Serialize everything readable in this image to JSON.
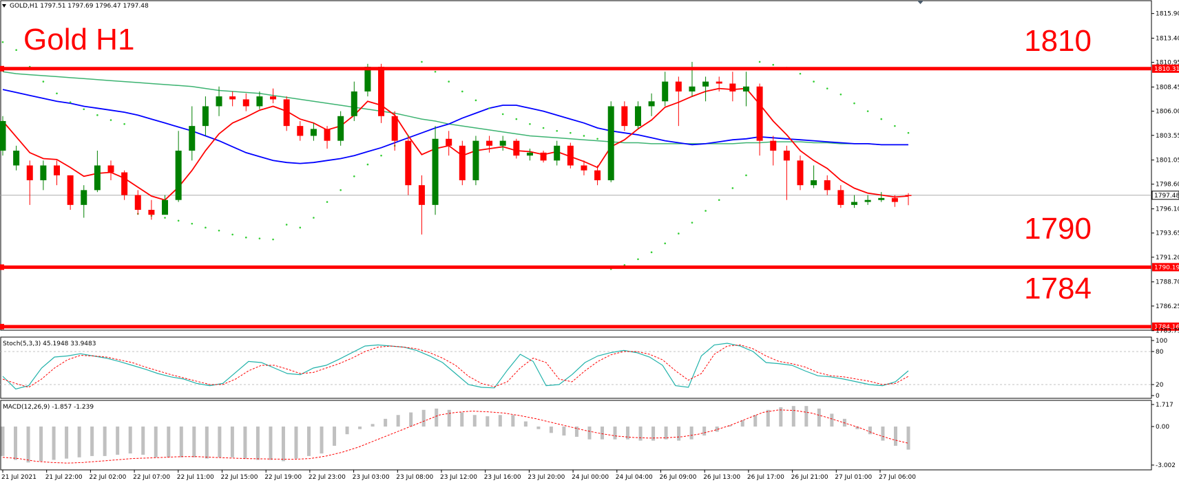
{
  "header": {
    "symbol_info": "GOLD,H1  1797.51 1797.69 1796.47 1797.48"
  },
  "colors": {
    "bull": "#008000",
    "bear": "#ff0000",
    "ma_fast": "#ff0000",
    "ma_mid": "#0000ff",
    "ma_slow": "#3cb371",
    "sar": "#32cd32",
    "level_line": "#ff0000",
    "stoch_main": "#20b2aa",
    "stoch_signal": "#ff0000",
    "macd_hist": "#c0c0c0",
    "macd_signal": "#ff0000"
  },
  "chart_data": {
    "type": "candlestick",
    "title": "Gold H1",
    "price_axis": {
      "ylim": [
        1783.8,
        1817.2
      ],
      "ticks": [
        "1815.90",
        "1813.40",
        "1810.95",
        "1808.45",
        "1806.00",
        "1803.55",
        "1801.05",
        "1798.60",
        "1796.10",
        "1793.65",
        "1791.20",
        "1788.70",
        "1786.25",
        "1783.75"
      ],
      "current_price": "1797.48",
      "level_tags": [
        "1810.31",
        "1790.19",
        "1784.16"
      ]
    },
    "levels": [
      {
        "label": "1810",
        "price": 1810.31
      },
      {
        "label": "1790",
        "price": 1790.19
      },
      {
        "label": "1784",
        "price": 1784.16
      }
    ],
    "time_labels": [
      "21 Jul 2021",
      "21 Jul 22:00",
      "22 Jul 02:00",
      "22 Jul 07:00",
      "22 Jul 11:00",
      "22 Jul 15:00",
      "22 Jul 19:00",
      "22 Jul 23:00",
      "23 Jul 03:00",
      "23 Jul 08:00",
      "23 Jul 12:00",
      "23 Jul 16:00",
      "23 Jul 20:00",
      "24 Jul 00:00",
      "24 Jul 04:00",
      "26 Jul 09:00",
      "26 Jul 13:00",
      "26 Jul 17:00",
      "26 Jul 21:00",
      "27 Jul 01:00",
      "27 Jul 06:00"
    ],
    "candles": [
      [
        1802,
        1805,
        1805.5,
        1801.5
      ],
      [
        1800.5,
        1802,
        1802.5,
        1800
      ],
      [
        1800.5,
        1799,
        1801,
        1796.5
      ],
      [
        1799,
        1800.5,
        1801,
        1798
      ],
      [
        1800.5,
        1799.5,
        1801,
        1798.5
      ],
      [
        1799.5,
        1796.5,
        1799.5,
        1796
      ],
      [
        1796.5,
        1798,
        1798.5,
        1795.2
      ],
      [
        1798,
        1800.5,
        1802,
        1797.8
      ],
      [
        1800.5,
        1799.8,
        1801,
        1799
      ],
      [
        1799.8,
        1797.5,
        1800,
        1797
      ],
      [
        1797.5,
        1796,
        1798,
        1795.5
      ],
      [
        1796,
        1795.5,
        1797,
        1795
      ],
      [
        1795.5,
        1797,
        1797.5,
        1795.8
      ],
      [
        1797,
        1802,
        1804,
        1796.8
      ],
      [
        1802,
        1804.5,
        1806.5,
        1801
      ],
      [
        1804.5,
        1806.5,
        1807.5,
        1803.5
      ],
      [
        1806.5,
        1807.5,
        1808.5,
        1805.5
      ],
      [
        1807.5,
        1807.2,
        1808,
        1806.5
      ],
      [
        1807.2,
        1806.5,
        1807.8,
        1806
      ],
      [
        1806.5,
        1807.5,
        1808,
        1806.2
      ],
      [
        1807.5,
        1807.2,
        1808.3,
        1806.8
      ],
      [
        1807.2,
        1804.5,
        1807.5,
        1804
      ],
      [
        1804.5,
        1803.5,
        1805,
        1803
      ],
      [
        1803.5,
        1804.2,
        1804.8,
        1803
      ],
      [
        1804.2,
        1803,
        1804.5,
        1802.2
      ],
      [
        1803,
        1805.5,
        1806,
        1802.5
      ],
      [
        1805.5,
        1808,
        1809,
        1805
      ],
      [
        1808,
        1810.5,
        1810.8,
        1807.5
      ],
      [
        1810.5,
        1805.5,
        1810.8,
        1804.8
      ],
      [
        1805.5,
        1803,
        1806,
        1802
      ],
      [
        1803,
        1798.5,
        1803.5,
        1797.5
      ],
      [
        1798.5,
        1796.5,
        1799.5,
        1793.5
      ],
      [
        1796.5,
        1803.2,
        1804.5,
        1795.5
      ],
      [
        1803.2,
        1802.5,
        1804,
        1801.5
      ],
      [
        1802.5,
        1799,
        1803,
        1798.5
      ],
      [
        1799,
        1803,
        1803.5,
        1798.5
      ],
      [
        1803,
        1802.5,
        1803.5,
        1801.8
      ],
      [
        1802.5,
        1803,
        1803.5,
        1802
      ],
      [
        1803,
        1801.5,
        1803.2,
        1801.2
      ],
      [
        1801.5,
        1801.8,
        1802.2,
        1801
      ],
      [
        1801.8,
        1801,
        1802,
        1800.8
      ],
      [
        1801,
        1802.5,
        1803,
        1800.5
      ],
      [
        1802.5,
        1800.5,
        1802.8,
        1800.2
      ],
      [
        1800.5,
        1800,
        1801,
        1799.5
      ],
      [
        1800,
        1799,
        1800.5,
        1798.5
      ],
      [
        1799,
        1806.5,
        1807,
        1798.8
      ],
      [
        1806.5,
        1804.5,
        1807,
        1804
      ],
      [
        1804.5,
        1806.5,
        1807,
        1804.2
      ],
      [
        1806.5,
        1807,
        1807.8,
        1805.5
      ],
      [
        1807,
        1809,
        1810,
        1806.5
      ],
      [
        1809,
        1808,
        1809.5,
        1804.5
      ],
      [
        1808,
        1808.5,
        1811,
        1807.5
      ],
      [
        1808.5,
        1809,
        1809.5,
        1807
      ],
      [
        1809,
        1808.8,
        1809.5,
        1808
      ],
      [
        1808.8,
        1808,
        1810,
        1807
      ],
      [
        1808,
        1808.5,
        1810,
        1806.5
      ],
      [
        1808.5,
        1803,
        1808.8,
        1801.5
      ],
      [
        1803,
        1802,
        1803.5,
        1800.5
      ],
      [
        1802,
        1801,
        1802.5,
        1797
      ],
      [
        1801,
        1798.5,
        1801.5,
        1798
      ],
      [
        1798.5,
        1799,
        1800.5,
        1798.2
      ],
      [
        1799,
        1798,
        1799.5,
        1797.5
      ],
      [
        1798,
        1796.5,
        1798.5,
        1796.2
      ],
      [
        1796.5,
        1796.8,
        1797.5,
        1796.2
      ],
      [
        1796.8,
        1797,
        1797.5,
        1796.5
      ],
      [
        1797,
        1797.2,
        1797.8,
        1796.8
      ],
      [
        1797.2,
        1796.8,
        1797.5,
        1796.3
      ],
      [
        1797.51,
        1797.48,
        1797.69,
        1796.47
      ]
    ],
    "ma_fast": [
      1805,
      1803.4,
      1801.8,
      1801.2,
      1801.1,
      1800.3,
      1799.4,
      1799.7,
      1799.8,
      1799.2,
      1798.3,
      1797.4,
      1797,
      1798.3,
      1800,
      1802,
      1803.7,
      1804.8,
      1805.4,
      1806.1,
      1806.5,
      1806,
      1805.2,
      1804.8,
      1804.1,
      1804.5,
      1805.6,
      1807,
      1806.6,
      1805.6,
      1803.5,
      1801.6,
      1802.2,
      1802.5,
      1801.5,
      1802,
      1802.2,
      1802.4,
      1802,
      1801.9,
      1801.6,
      1801.9,
      1801.4,
      1800.9,
      1800.3,
      1802.4,
      1803.1,
      1804.2,
      1805.1,
      1806.4,
      1806.9,
      1807.5,
      1808,
      1808.3,
      1808.2,
      1808.3,
      1806.7,
      1805,
      1803.6,
      1802,
      1801,
      1800.2,
      1799,
      1798.2,
      1797.7,
      1797.5,
      1797.3,
      1797.4
    ],
    "ma_mid": [
      1808.2,
      1807.9,
      1807.6,
      1807.3,
      1807,
      1806.8,
      1806.5,
      1806.3,
      1806.1,
      1805.9,
      1805.6,
      1805.2,
      1804.8,
      1804.4,
      1804,
      1803.5,
      1803,
      1802.4,
      1801.8,
      1801.4,
      1801,
      1800.8,
      1800.7,
      1800.8,
      1801,
      1801.2,
      1801.5,
      1801.9,
      1802.3,
      1802.8,
      1803.3,
      1803.8,
      1804.3,
      1804.7,
      1805.3,
      1805.8,
      1806.3,
      1806.6,
      1806.6,
      1806.3,
      1806,
      1805.6,
      1805.2,
      1804.8,
      1804.3,
      1804.0,
      1803.8,
      1803.6,
      1803.3,
      1803,
      1802.8,
      1802.6,
      1802.7,
      1802.9,
      1803.1,
      1803.2,
      1803.4,
      1803.3,
      1803.2,
      1803.1,
      1803.0,
      1802.9,
      1802.8,
      1802.7,
      1802.7,
      1802.6,
      1802.6,
      1802.6
    ],
    "ma_slow": [
      1810,
      1809.8,
      1809.7,
      1809.6,
      1809.5,
      1809.4,
      1809.3,
      1809.2,
      1809.1,
      1809,
      1808.9,
      1808.8,
      1808.7,
      1808.6,
      1808.5,
      1808.3,
      1808.1,
      1808,
      1807.9,
      1807.8,
      1807.6,
      1807.4,
      1807.2,
      1807,
      1806.8,
      1806.6,
      1806.4,
      1806.2,
      1806,
      1805.8,
      1805.5,
      1805.2,
      1805,
      1804.7,
      1804.5,
      1804.3,
      1804.1,
      1803.9,
      1803.7,
      1803.5,
      1803.4,
      1803.3,
      1803.2,
      1803.1,
      1803,
      1802.9,
      1802.8,
      1802.8,
      1802.7,
      1802.7,
      1802.7,
      1802.7,
      1802.7,
      1802.7,
      1802.7,
      1802.8,
      1802.8,
      1802.9,
      1802.9,
      1802.9,
      1802.8,
      1802.8,
      1802.7,
      1802.7,
      1802.7,
      1802.6,
      1802.6,
      1802.6
    ],
    "sar": [
      1813,
      1812.2,
      1810.5,
      1809,
      1807.8,
      1806.9,
      1806.2,
      1805.6,
      1805.1,
      1804.7,
      1795.6,
      1795.4,
      1795.2,
      1794.9,
      1794.6,
      1794.2,
      1793.9,
      1793.5,
      1793.2,
      1793.1,
      1793,
      1794.5,
      1794.2,
      1795.2,
      1796.8,
      1798,
      1799.4,
      1800.6,
      1801.5,
      1802.5,
      1803.5,
      1811,
      1810,
      1809,
      1808,
      1807.1,
      1806.3,
      1805.7,
      1805.2,
      1804.7,
      1804.3,
      1804,
      1803.8,
      1803.5,
      1803.2,
      1790,
      1790.4,
      1791,
      1791.7,
      1792.6,
      1793.6,
      1794.7,
      1795.9,
      1797,
      1798.2,
      1799.5,
      1811,
      1810.7,
      1810.4,
      1809.8,
      1809,
      1808.3,
      1807.7,
      1806.8,
      1806,
      1805.2,
      1804.5,
      1803.8
    ],
    "stoch": {
      "label": "Stoch(5,3,3) 45.1948 33.9483",
      "ylim": [
        0,
        100
      ],
      "ticks": [
        "100",
        "80",
        "20",
        "0"
      ],
      "main": [
        35,
        12,
        18,
        50,
        70,
        72,
        76,
        72,
        68,
        62,
        55,
        48,
        40,
        34,
        30,
        22,
        18,
        22,
        42,
        62,
        60,
        50,
        40,
        38,
        50,
        55,
        66,
        78,
        90,
        92,
        90,
        88,
        82,
        72,
        60,
        40,
        20,
        15,
        14,
        46,
        75,
        62,
        18,
        20,
        38,
        60,
        72,
        78,
        82,
        78,
        70,
        55,
        18,
        15,
        72,
        92,
        95,
        90,
        80,
        60,
        58,
        55,
        45,
        36,
        34,
        30,
        25,
        20,
        18,
        25,
        45
      ],
      "signal": [
        30,
        22,
        15,
        30,
        50,
        65,
        73,
        72,
        70,
        65,
        60,
        52,
        45,
        38,
        32,
        26,
        20,
        20,
        30,
        45,
        55,
        55,
        48,
        40,
        42,
        50,
        58,
        68,
        80,
        88,
        90,
        88,
        85,
        78,
        68,
        55,
        35,
        22,
        16,
        25,
        50,
        68,
        60,
        30,
        25,
        45,
        62,
        74,
        80,
        80,
        75,
        65,
        45,
        28,
        40,
        75,
        90,
        92,
        85,
        72,
        62,
        58,
        52,
        42,
        36,
        34,
        30,
        26,
        20,
        22,
        35
      ]
    },
    "macd": {
      "label": "MACD(12,26,9) -1.857 -1.239",
      "ylim": [
        -3.002,
        1.717
      ],
      "ticks": [
        "1.717",
        "0.00",
        "-3.002"
      ],
      "hist": [
        -2.3,
        -2.6,
        -2.8,
        -2.7,
        -2.6,
        -2.5,
        -2.4,
        -2.3,
        -2.3,
        -2.2,
        -2.1,
        -2.2,
        -2.4,
        -2.4,
        -2.4,
        -2.4,
        -2.5,
        -2.4,
        -2.4,
        -2.5,
        -2.6,
        -2.6,
        -2.7,
        -2.5,
        -2.3,
        -2.1,
        -1.5,
        -0.6,
        -0.2,
        0.2,
        0.6,
        0.9,
        1.1,
        1.3,
        1.4,
        1.3,
        1.1,
        0.9,
        0.8,
        0.9,
        0.9,
        0.4,
        -0.2,
        -0.5,
        -0.7,
        -0.8,
        -1.0,
        -1.0,
        -1.0,
        -1.0,
        -1.1,
        -1.1,
        -1.0,
        -1.1,
        -1.0,
        -0.7,
        -0.4,
        0.1,
        0.5,
        0.9,
        1.3,
        1.5,
        1.6,
        1.6,
        1.4,
        1.0,
        0.6,
        -0.2,
        -0.6,
        -1.1,
        -1.5,
        -1.8
      ],
      "signal": [
        -2.4,
        -2.5,
        -2.7,
        -2.8,
        -2.85,
        -2.8,
        -2.7,
        -2.6,
        -2.5,
        -2.45,
        -2.4,
        -2.35,
        -2.35,
        -2.4,
        -2.45,
        -2.5,
        -2.52,
        -2.54,
        -2.55,
        -2.5,
        -2.3,
        -2.0,
        -1.6,
        -1.1,
        -0.6,
        -0.1,
        0.4,
        0.9,
        1.1,
        1.2,
        1.15,
        1.05,
        0.85,
        0.6,
        0.3,
        0.0,
        -0.3,
        -0.55,
        -0.75,
        -0.85,
        -0.9,
        -0.88,
        -0.8,
        -0.6,
        -0.3,
        0.1,
        0.6,
        1.1,
        1.3,
        1.25,
        1.05,
        0.7,
        0.3,
        -0.1,
        -0.6,
        -1.0,
        -1.3
      ]
    }
  }
}
